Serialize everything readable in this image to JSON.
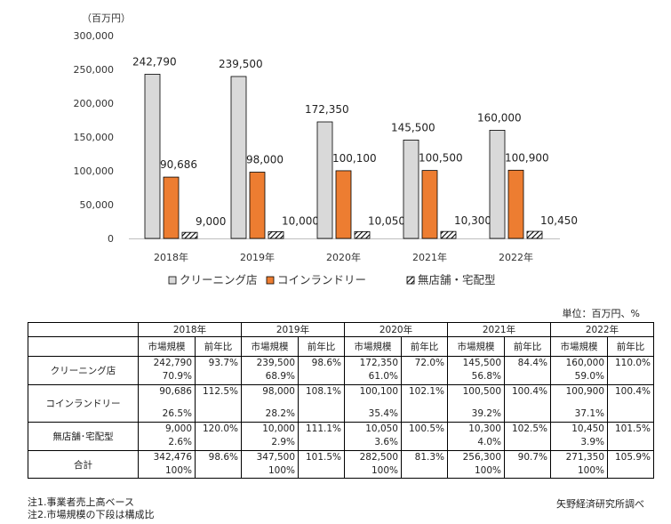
{
  "chart_data": {
    "type": "bar",
    "unit_label": "（百万円）",
    "categories": [
      "2018年",
      "2019年",
      "2020年",
      "2021年",
      "2022年"
    ],
    "series": [
      {
        "name": "クリーニング店",
        "color": "#d9d9d9",
        "pattern": "solid",
        "values": [
          242790,
          239500,
          172350,
          145500,
          160000
        ],
        "labels": [
          "242,790",
          "239,500",
          "172,350",
          "145,500",
          "160,000"
        ]
      },
      {
        "name": "コインランドリー",
        "color": "#ed7d31",
        "pattern": "solid",
        "values": [
          90686,
          98000,
          100100,
          100500,
          100900
        ],
        "labels": [
          "90,686",
          "98,000",
          "100,100",
          "100,500",
          "100,900"
        ]
      },
      {
        "name": "無店舗・宅配型",
        "color": "#ffffff",
        "pattern": "hatch",
        "values": [
          9000,
          10000,
          10050,
          10300,
          10450
        ],
        "labels": [
          "9,000",
          "10,000",
          "10,050",
          "10,300",
          "10,450"
        ]
      }
    ],
    "ylim": [
      0,
      300000
    ],
    "yticks": [
      0,
      50000,
      100000,
      150000,
      200000,
      250000,
      300000
    ],
    "ytick_labels": [
      "0",
      "50,000",
      "100,000",
      "150,000",
      "200,000",
      "250,000",
      "300,000"
    ],
    "legend": "bottom"
  },
  "table": {
    "units": "単位：百万円、%",
    "years": [
      "2018年",
      "2019年",
      "2020年",
      "2021年",
      "2022年"
    ],
    "sub_headers": {
      "size": "市場規模",
      "yoy": "前年比"
    },
    "rows": [
      {
        "label": "クリーニング店",
        "cells": [
          {
            "size": "242,790",
            "share": "70.9%",
            "yoy": "93.7%"
          },
          {
            "size": "239,500",
            "share": "68.9%",
            "yoy": "98.6%"
          },
          {
            "size": "172,350",
            "share": "61.0%",
            "yoy": "72.0%"
          },
          {
            "size": "145,500",
            "share": "56.8%",
            "yoy": "84.4%"
          },
          {
            "size": "160,000",
            "share": "59.0%",
            "yoy": "110.0%"
          }
        ]
      },
      {
        "label": "コインランドリー",
        "cells": [
          {
            "size": "90,686",
            "share": "26.5%",
            "yoy": "112.5%"
          },
          {
            "size": "98,000",
            "share": "28.2%",
            "yoy": "108.1%"
          },
          {
            "size": "100,100",
            "share": "35.4%",
            "yoy": "102.1%"
          },
          {
            "size": "100,500",
            "share": "39.2%",
            "yoy": "100.4%"
          },
          {
            "size": "100,900",
            "share": "37.1%",
            "yoy": "100.4%"
          }
        ]
      },
      {
        "label": "無店舗･宅配型",
        "cells": [
          {
            "size": "9,000",
            "share": "2.6%",
            "yoy": "120.0%"
          },
          {
            "size": "10,000",
            "share": "2.9%",
            "yoy": "111.1%"
          },
          {
            "size": "10,050",
            "share": "3.6%",
            "yoy": "100.5%"
          },
          {
            "size": "10,300",
            "share": "4.0%",
            "yoy": "102.5%"
          },
          {
            "size": "10,450",
            "share": "3.9%",
            "yoy": "101.5%"
          }
        ]
      },
      {
        "label": "合計",
        "cells": [
          {
            "size": "342,476",
            "share": "100%",
            "yoy": "98.6%"
          },
          {
            "size": "347,500",
            "share": "100%",
            "yoy": "101.5%"
          },
          {
            "size": "282,500",
            "share": "100%",
            "yoy": "81.3%"
          },
          {
            "size": "256,300",
            "share": "100%",
            "yoy": "90.7%"
          },
          {
            "size": "271,350",
            "share": "100%",
            "yoy": "105.9%"
          }
        ]
      }
    ]
  },
  "notes": [
    "注1.事業者売上高ベース",
    "注2.市場規模の下段は構成比"
  ],
  "source": "矢野経済研究所調べ"
}
